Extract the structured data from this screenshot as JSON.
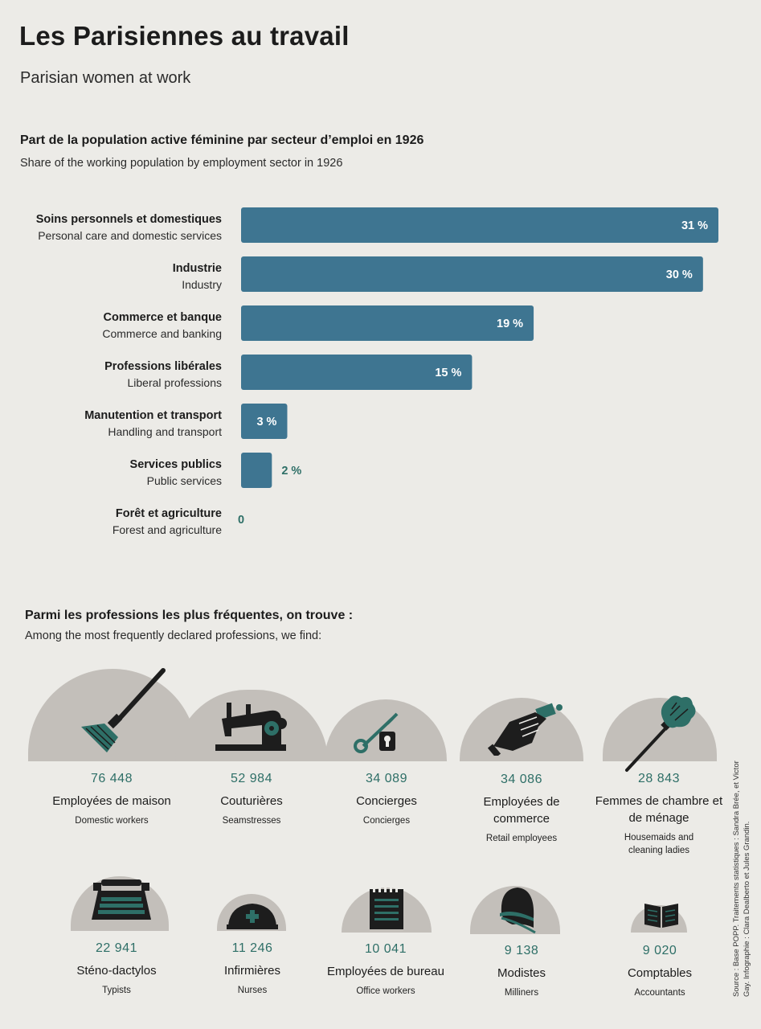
{
  "header": {
    "title": "Les Parisiennes au travail",
    "subtitle": "Parisian women at work"
  },
  "chart_section": {
    "title": "Part de la population active féminine par secteur d’emploi en 1926",
    "subtitle": "Share of the working population by employment sector in 1926"
  },
  "chart_data": {
    "type": "bar",
    "orientation": "horizontal",
    "categories": [
      {
        "fr": "Soins personnels et domestiques",
        "en": "Personal care and domestic services"
      },
      {
        "fr": "Industrie",
        "en": "Industry"
      },
      {
        "fr": "Commerce et banque",
        "en": "Commerce and banking"
      },
      {
        "fr": "Professions libérales",
        "en": "Liberal professions"
      },
      {
        "fr": "Manutention et transport",
        "en": "Handling and transport"
      },
      {
        "fr": "Services publics",
        "en": "Public services"
      },
      {
        "fr": "Forêt et agriculture",
        "en": "Forest and agriculture"
      }
    ],
    "values": [
      31,
      30,
      19,
      15,
      3,
      2,
      0
    ],
    "labels": [
      "31 %",
      "30 %",
      "19 %",
      "15 %",
      "3 %",
      "2 %",
      "0"
    ],
    "bar_color": "#3e7591",
    "label_color_outside": "#2e6f67"
  },
  "professions_section": {
    "title": "Parmi les professions les plus fréquentes, on trouve :",
    "subtitle": "Among the most frequently declared professions, we find:"
  },
  "professions": [
    {
      "count": "76 448",
      "fr": "Employées de maison",
      "en": "Domestic workers",
      "icon": "broom-icon"
    },
    {
      "count": "52 984",
      "fr": "Couturières",
      "en": "Seamstresses",
      "icon": "sewing-machine-icon"
    },
    {
      "count": "34 089",
      "fr": "Concierges",
      "en": "Concierges",
      "icon": "key-icon"
    },
    {
      "count": "34 086",
      "fr": "Employées de commerce",
      "en": "Retail employees",
      "icon": "hand-icon"
    },
    {
      "count": "28 843",
      "fr": "Femmes de chambre et de ménage",
      "en": "Housemaids and cleaning ladies",
      "icon": "feather-duster-icon"
    },
    {
      "count": "22 941",
      "fr": "Sténo-dactylos",
      "en": "Typists",
      "icon": "typewriter-icon"
    },
    {
      "count": "11 246",
      "fr": "Infirmières",
      "en": "Nurses",
      "icon": "nurse-cap-icon"
    },
    {
      "count": "10 041",
      "fr": "Employées de bureau",
      "en": "Office workers",
      "icon": "notepad-icon"
    },
    {
      "count": "9 138",
      "fr": "Modistes",
      "en": "Milliners",
      "icon": "cloche-hat-icon"
    },
    {
      "count": "9 020",
      "fr": "Comptables",
      "en": "Accountants",
      "icon": "book-icon"
    }
  ],
  "colors": {
    "teal": "#2e6f67",
    "icon_dark": "#1d1d1d",
    "dome": "#c3bfba",
    "background": "#ecebe7"
  },
  "source": "Source : Base POPP. Traitements statistiques : Sandra Brée, et Victor Gay. Infographie : Clara Dealberto et Jules Grandin."
}
